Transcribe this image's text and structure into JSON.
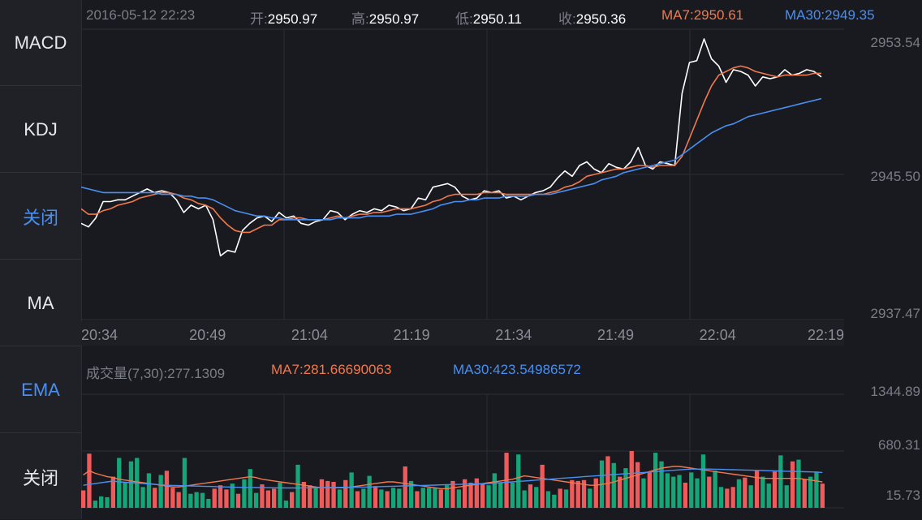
{
  "sidebar": {
    "items": [
      {
        "label": "MACD",
        "active": false
      },
      {
        "label": "KDJ",
        "active": false
      },
      {
        "label": "关闭",
        "active": true
      },
      {
        "label": "MA",
        "active": false
      },
      {
        "label": "EMA",
        "active": true
      },
      {
        "label": "关闭",
        "active": false
      }
    ]
  },
  "header": {
    "datetime": "2016-05-12 22:23",
    "open_label": "开:",
    "open": "2950.97",
    "high_label": "高:",
    "high": "2950.97",
    "low_label": "低:",
    "low": "2950.11",
    "close_label": "收:",
    "close": "2950.36",
    "ma7_label": "MA7:",
    "ma7": "2950.61",
    "ma30_label": "MA30:",
    "ma30": "2949.35"
  },
  "volume_header": {
    "label": "成交量(7,30):277.1309",
    "ma7_label": "MA7:",
    "ma7": "281.66690063",
    "ma30_label": "MA30:",
    "ma30": "423.54986572"
  },
  "colors": {
    "price_line": "#ffffff",
    "ma7": "#f0794d",
    "ma30": "#4a8ff0",
    "up": "#f05a5a",
    "down": "#15a577",
    "active_tab": "#4a8ff0"
  },
  "chart_data": [
    {
      "type": "line",
      "x_ticks": [
        "20:34",
        "20:49",
        "21:04",
        "21:19",
        "21:34",
        "21:49",
        "22:04",
        "22:19"
      ],
      "y_ticks": [
        "2953.54",
        "2945.50",
        "2937.47"
      ],
      "ylim": [
        2937.47,
        2953.54
      ],
      "series": [
        {
          "name": "price",
          "values": [
            2942.8,
            2942.6,
            2943.1,
            2944.0,
            2944.0,
            2944.1,
            2944.1,
            2944.3,
            2944.5,
            2944.7,
            2944.5,
            2944.6,
            2944.5,
            2944.1,
            2943.4,
            2943.8,
            2943.6,
            2943.8,
            2943.0,
            2941.0,
            2941.3,
            2941.2,
            2942.4,
            2942.8,
            2943.1,
            2943.2,
            2942.9,
            2943.4,
            2943.1,
            2943.2,
            2942.8,
            2942.7,
            2942.9,
            2943.0,
            2943.5,
            2943.4,
            2943.0,
            2943.3,
            2943.5,
            2943.4,
            2943.6,
            2943.5,
            2943.8,
            2943.7,
            2943.5,
            2943.6,
            2944.2,
            2944.1,
            2944.8,
            2944.9,
            2945.0,
            2944.8,
            2944.3,
            2944.1,
            2944.2,
            2944.6,
            2944.5,
            2944.6,
            2944.2,
            2944.3,
            2944.1,
            2944.3,
            2944.5,
            2944.6,
            2944.8,
            2945.3,
            2945.7,
            2945.4,
            2946.0,
            2946.2,
            2945.8,
            2945.6,
            2946.1,
            2945.9,
            2945.8,
            2946.2,
            2947.0,
            2946.0,
            2945.8,
            2946.2,
            2946.1,
            2946.0,
            2950.0,
            2951.7,
            2951.8,
            2953.0,
            2951.9,
            2951.5,
            2950.6,
            2951.3,
            2951.2,
            2951.0,
            2950.4,
            2950.9,
            2950.8,
            2950.9,
            2951.3,
            2951.0,
            2951.1,
            2951.3,
            2951.2,
            2950.9
          ]
        },
        {
          "name": "MA7",
          "values": [
            2943.6,
            2943.3,
            2943.3,
            2943.5,
            2943.6,
            2943.8,
            2943.9,
            2944.0,
            2944.2,
            2944.3,
            2944.4,
            2944.5,
            2944.5,
            2944.4,
            2944.2,
            2944.1,
            2943.9,
            2943.8,
            2943.6,
            2943.1,
            2942.7,
            2942.4,
            2942.3,
            2942.3,
            2942.5,
            2942.7,
            2942.7,
            2943.0,
            2943.0,
            2943.1,
            2943.1,
            2943.0,
            2943.0,
            2943.0,
            2943.1,
            2943.2,
            2943.1,
            2943.2,
            2943.3,
            2943.3,
            2943.4,
            2943.4,
            2943.5,
            2943.6,
            2943.6,
            2943.6,
            2943.7,
            2943.8,
            2944.0,
            2944.1,
            2944.3,
            2944.4,
            2944.4,
            2944.4,
            2944.4,
            2944.5,
            2944.5,
            2944.5,
            2944.4,
            2944.4,
            2944.4,
            2944.4,
            2944.4,
            2944.4,
            2944.5,
            2944.6,
            2944.8,
            2944.9,
            2945.1,
            2945.4,
            2945.5,
            2945.6,
            2945.7,
            2945.8,
            2945.8,
            2945.9,
            2946.0,
            2946.0,
            2945.9,
            2946.0,
            2946.0,
            2946.0,
            2946.5,
            2947.5,
            2948.5,
            2949.5,
            2950.4,
            2951.0,
            2951.2,
            2951.4,
            2951.5,
            2951.4,
            2951.2,
            2951.1,
            2951.0,
            2950.9,
            2951.0,
            2951.0,
            2951.0,
            2951.0,
            2951.1,
            2951.1
          ]
        },
        {
          "name": "MA30",
          "values": [
            2944.8,
            2944.7,
            2944.6,
            2944.5,
            2944.5,
            2944.5,
            2944.5,
            2944.5,
            2944.5,
            2944.5,
            2944.5,
            2944.4,
            2944.4,
            2944.4,
            2944.3,
            2944.3,
            2944.2,
            2944.2,
            2944.1,
            2943.9,
            2943.7,
            2943.5,
            2943.4,
            2943.3,
            2943.2,
            2943.2,
            2943.1,
            2943.1,
            2943.0,
            2943.0,
            2943.0,
            2943.0,
            2943.0,
            2943.0,
            2943.0,
            2943.1,
            2943.1,
            2943.1,
            2943.1,
            2943.2,
            2943.2,
            2943.2,
            2943.2,
            2943.3,
            2943.3,
            2943.3,
            2943.4,
            2943.5,
            2943.6,
            2943.8,
            2943.9,
            2944.0,
            2944.0,
            2944.1,
            2944.1,
            2944.2,
            2944.2,
            2944.2,
            2944.3,
            2944.3,
            2944.3,
            2944.3,
            2944.4,
            2944.4,
            2944.4,
            2944.5,
            2944.6,
            2944.7,
            2944.8,
            2944.9,
            2945.0,
            2945.2,
            2945.3,
            2945.4,
            2945.6,
            2945.7,
            2945.8,
            2945.9,
            2946.0,
            2946.1,
            2946.2,
            2946.3,
            2946.6,
            2946.9,
            2947.2,
            2947.5,
            2947.8,
            2948.0,
            2948.2,
            2948.3,
            2948.5,
            2948.7,
            2948.8,
            2948.9,
            2949.0,
            2949.1,
            2949.2,
            2949.3,
            2949.4,
            2949.5,
            2949.6,
            2949.7
          ]
        }
      ]
    },
    {
      "type": "bar",
      "y_ticks": [
        "1344.89",
        "680.31",
        "15.73"
      ],
      "ylim": [
        15.73,
        1344.89
      ],
      "volume": [
        220,
        650,
        100,
        150,
        140,
        380,
        600,
        320,
        560,
        600,
        260,
        420,
        250,
        400,
        450,
        250,
        200,
        600,
        180,
        200,
        190,
        120,
        240,
        280,
        230,
        300,
        180,
        350,
        470,
        190,
        290,
        220,
        240,
        310,
        100,
        200,
        520,
        320,
        280,
        260,
        350,
        330,
        320,
        230,
        340,
        430,
        210,
        240,
        390,
        270,
        230,
        210,
        250,
        240,
        500,
        330,
        210,
        250,
        250,
        250,
        230,
        280,
        330,
        230,
        350,
        310,
        360,
        300,
        280,
        420,
        310,
        660,
        310,
        640,
        220,
        290,
        260,
        520,
        210,
        170,
        240,
        230,
        340,
        330,
        340,
        240,
        360,
        570,
        620,
        540,
        380,
        480,
        680,
        550,
        360,
        430,
        660,
        560,
        420,
        380,
        400,
        310,
        430,
        360,
        640,
        380,
        450,
        260,
        240,
        260,
        350,
        370,
        280,
        450,
        380,
        300,
        440,
        630,
        280,
        560,
        580,
        350,
        380,
        440,
        300
      ],
      "direction": [
        "up",
        "up",
        "down",
        "down",
        "down",
        "up",
        "down",
        "down",
        "down",
        "down",
        "down",
        "down",
        "up",
        "down",
        "up",
        "up",
        "up",
        "down",
        "down",
        "down",
        "down",
        "down",
        "up",
        "up",
        "up",
        "down",
        "up",
        "down",
        "down",
        "down",
        "up",
        "up",
        "up",
        "down",
        "down",
        "up",
        "down",
        "up",
        "up",
        "down",
        "up",
        "up",
        "up",
        "down",
        "up",
        "down",
        "up",
        "down",
        "down",
        "up",
        "down",
        "up",
        "down",
        "down",
        "up",
        "down",
        "up",
        "down",
        "down",
        "down",
        "up",
        "down",
        "up",
        "down",
        "up",
        "up",
        "up",
        "up",
        "down",
        "down",
        "down",
        "up",
        "down",
        "down",
        "down",
        "up",
        "down",
        "up",
        "down",
        "down",
        "up",
        "down",
        "up",
        "up",
        "up",
        "down",
        "up",
        "down",
        "up",
        "down",
        "up",
        "down",
        "up",
        "up",
        "down",
        "up",
        "down",
        "down",
        "down",
        "down",
        "down",
        "up",
        "down",
        "down",
        "down",
        "up",
        "down",
        "down",
        "up",
        "up",
        "down",
        "up",
        "down",
        "up",
        "down",
        "down",
        "up",
        "down",
        "down",
        "up",
        "down",
        "up",
        "down",
        "down",
        "up"
      ],
      "ma7": [
        400,
        450,
        420,
        400,
        380,
        370,
        350,
        340,
        330,
        320,
        310,
        300,
        290,
        280,
        270,
        260,
        260,
        270,
        280,
        290,
        300,
        310,
        320,
        330,
        340,
        350,
        360,
        370,
        380,
        370,
        350,
        340,
        330,
        320,
        310,
        300,
        290,
        280,
        270,
        260,
        250,
        250,
        250,
        250,
        250,
        260,
        270,
        280,
        290,
        300,
        310,
        320,
        320,
        310,
        300,
        290,
        280,
        270,
        260,
        250,
        240,
        240,
        250,
        260,
        270,
        280,
        290,
        300,
        310,
        320,
        330,
        340,
        350,
        370,
        390,
        380,
        370,
        360,
        350,
        340,
        330,
        320,
        310,
        300,
        290,
        280,
        280,
        290,
        300,
        320,
        340,
        360,
        380,
        400,
        420,
        440,
        460,
        480,
        490,
        500,
        500,
        490,
        480,
        470,
        460,
        450,
        440,
        430,
        420,
        410,
        400,
        390,
        380,
        370,
        360,
        360,
        360,
        360,
        360,
        360,
        360,
        350,
        340,
        330,
        320
      ],
      "ma30": [
        280,
        290,
        300,
        310,
        320,
        330,
        320,
        315,
        310,
        305,
        300,
        295,
        290,
        285,
        280,
        278,
        276,
        274,
        272,
        270,
        268,
        266,
        264,
        262,
        260,
        258,
        256,
        255,
        254,
        253,
        252,
        251,
        250,
        249,
        248,
        248,
        248,
        249,
        250,
        251,
        252,
        253,
        254,
        255,
        256,
        257,
        258,
        259,
        260,
        262,
        264,
        266,
        268,
        270,
        272,
        274,
        276,
        278,
        280,
        282,
        284,
        286,
        288,
        290,
        292,
        294,
        296,
        298,
        300,
        305,
        310,
        315,
        320,
        325,
        330,
        335,
        340,
        345,
        350,
        355,
        360,
        365,
        370,
        375,
        380,
        385,
        390,
        395,
        400,
        405,
        410,
        415,
        420,
        425,
        430,
        435,
        440,
        445,
        450,
        455,
        460,
        465,
        470,
        470,
        470,
        470,
        468,
        466,
        464,
        462,
        460,
        458,
        456,
        454,
        452,
        450,
        448,
        446,
        444,
        442,
        440,
        438,
        436,
        434,
        430
      ]
    }
  ]
}
